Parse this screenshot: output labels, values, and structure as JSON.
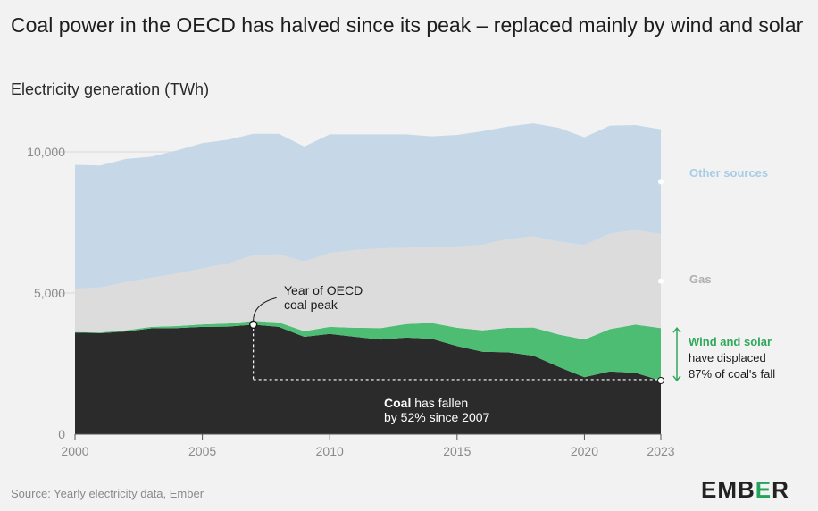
{
  "title": "Coal power in the OECD has halved since its peak – replaced mainly by wind and solar",
  "subtitle": "Electricity generation (TWh)",
  "source": "Source: Yearly electricity data, Ember",
  "logo": {
    "pre": "EMB",
    "accent": "E",
    "post": "R"
  },
  "colors": {
    "coal": "#2b2b2b",
    "wind_solar": "#4dbd74",
    "gas": "#dcdcdc",
    "other": "#c6d8e7",
    "other_label": "#a8cce6",
    "gas_label": "#b0b0b0",
    "ws_label": "#2fa85c"
  },
  "labels": {
    "other": "Other sources",
    "gas": "Gas",
    "ws_title": "Wind and solar",
    "ws_line1": "have displaced",
    "ws_line2": "87% of coal's fall",
    "peak_line1": "Year of OECD",
    "peak_line2": "coal peak",
    "coal_bold": "Coal",
    "coal_rest": " has fallen",
    "coal_line2": "by 52% since 2007"
  },
  "chart_data": {
    "type": "area",
    "stacked": true,
    "xlabel": "",
    "ylabel": "Electricity generation (TWh)",
    "xlim": [
      2000,
      2023
    ],
    "ylim": [
      0,
      12000
    ],
    "yticks": [
      0,
      5000,
      10000
    ],
    "ytick_labels": [
      "0",
      "5,000",
      "10,000"
    ],
    "xticks": [
      2000,
      2005,
      2010,
      2015,
      2020,
      2023
    ],
    "x": [
      2000,
      2001,
      2002,
      2003,
      2004,
      2005,
      2006,
      2007,
      2008,
      2009,
      2010,
      2011,
      2012,
      2013,
      2014,
      2015,
      2016,
      2017,
      2018,
      2019,
      2020,
      2021,
      2022,
      2023
    ],
    "series": [
      {
        "name": "Coal",
        "values": [
          3600,
          3580,
          3640,
          3750,
          3760,
          3800,
          3810,
          3880,
          3800,
          3450,
          3550,
          3450,
          3350,
          3420,
          3380,
          3120,
          2920,
          2900,
          2780,
          2380,
          2020,
          2220,
          2170,
          1900
        ]
      },
      {
        "name": "Wind and solar",
        "values": [
          20,
          25,
          40,
          50,
          70,
          90,
          110,
          130,
          160,
          200,
          250,
          320,
          410,
          480,
          560,
          650,
          760,
          870,
          1000,
          1150,
          1330,
          1500,
          1710,
          1860
        ]
      },
      {
        "name": "Gas",
        "values": [
          1530,
          1590,
          1700,
          1740,
          1860,
          1980,
          2120,
          2330,
          2410,
          2460,
          2620,
          2750,
          2820,
          2700,
          2670,
          2880,
          3030,
          3140,
          3230,
          3280,
          3350,
          3380,
          3350,
          3330
        ]
      },
      {
        "name": "Other sources",
        "values": [
          4390,
          4325,
          4370,
          4290,
          4360,
          4440,
          4390,
          4300,
          4270,
          4080,
          4200,
          4100,
          4040,
          4020,
          3940,
          3950,
          4020,
          3990,
          4000,
          4040,
          3820,
          3830,
          3720,
          3710
        ]
      }
    ],
    "annotations": [
      {
        "x": 2007,
        "text": "Year of OECD coal peak"
      },
      {
        "x": 2023,
        "text": "Coal has fallen by 52% since 2007"
      },
      {
        "x": 2023,
        "text": "Wind and solar have displaced 87% of coal's fall"
      }
    ]
  }
}
